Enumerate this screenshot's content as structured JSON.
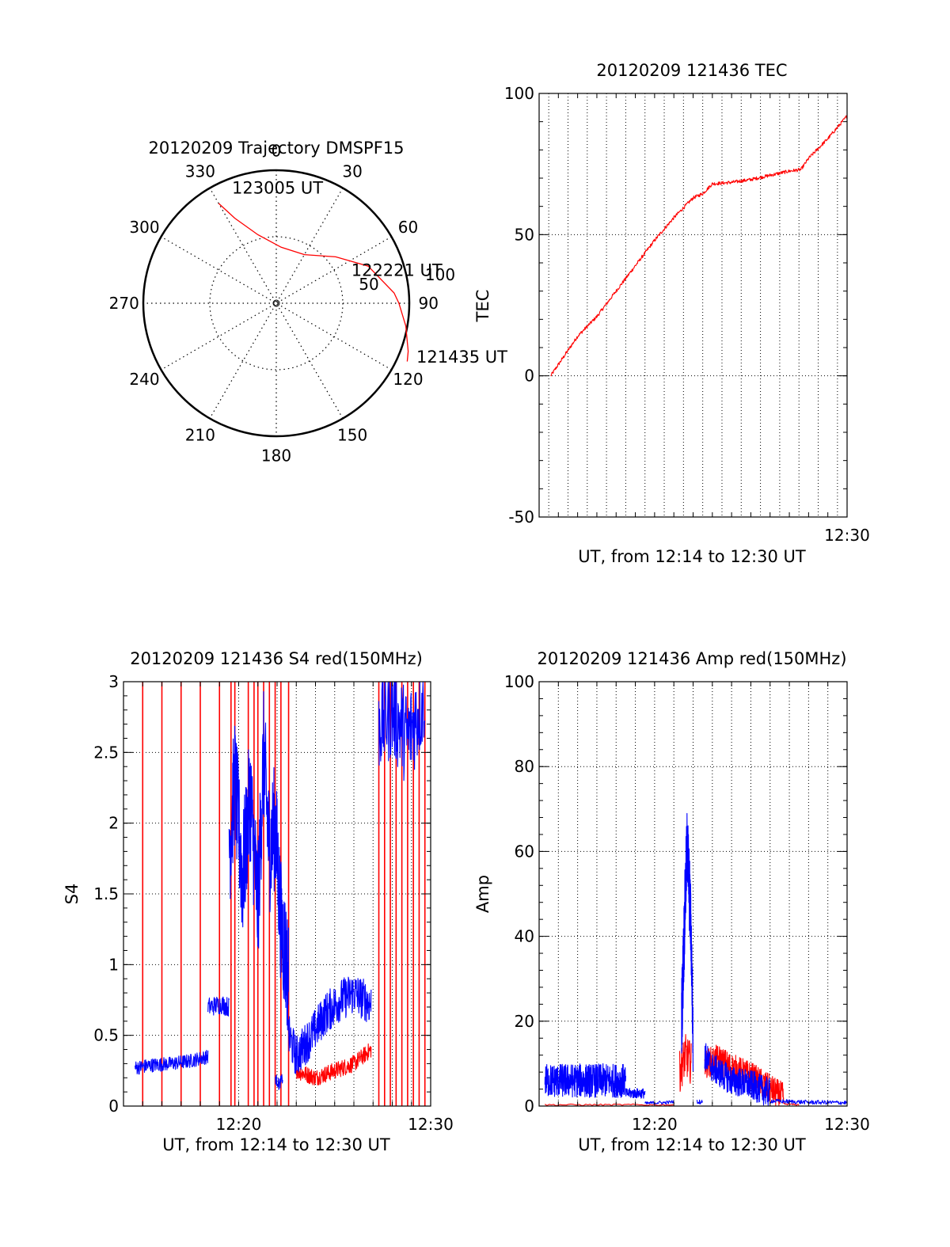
{
  "colors": {
    "red": "#ff0000",
    "blue": "#0000ff",
    "axis": "#000000",
    "grid": "#000000"
  },
  "chart_data": [
    {
      "id": "trajectory",
      "type": "polar",
      "title": "20120209 Trajectory DMSPF15",
      "angle_labels": [
        "0",
        "30",
        "60",
        "90",
        "120",
        "150",
        "180",
        "210",
        "240",
        "270",
        "300",
        "330"
      ],
      "angle_values": [
        0,
        30,
        60,
        90,
        120,
        150,
        180,
        210,
        240,
        270,
        300,
        330
      ],
      "radial_labels": [
        "50",
        "100"
      ],
      "radial_values": [
        50,
        100
      ],
      "grid": true,
      "series": [
        {
          "color": "red",
          "points": [
            [
              330,
              78
            ],
            [
              334,
              64
            ],
            [
              345,
              48
            ],
            [
              5,
              38
            ],
            [
              30,
              38
            ],
            [
              52,
              51
            ],
            [
              68,
              67
            ],
            [
              85,
              80
            ],
            [
              90,
              83
            ],
            [
              100,
              89
            ],
            [
              110,
              95
            ],
            [
              114,
              97
            ]
          ]
        }
      ],
      "annotations": [
        {
          "text": "123005 UT",
          "az": 338,
          "r": 80
        },
        {
          "text": "122221 UT",
          "az": 70,
          "r": 54
        },
        {
          "text": "121435 UT",
          "az": 113,
          "r": 103
        }
      ]
    },
    {
      "id": "tec",
      "type": "line",
      "title": "20120209 121436 TEC",
      "ylabel": "TEC",
      "xlabel": "UT, from 12:14 to 12:30 UT",
      "xlim": [
        0,
        16
      ],
      "ylim": [
        -50,
        100
      ],
      "yticks": [
        -50,
        0,
        50,
        100
      ],
      "ytick_labels": [
        "-50",
        "0",
        "50",
        "100"
      ],
      "xticks": [
        16
      ],
      "xtick_labels": [
        "12:30"
      ],
      "x_gridlines": [
        0.5,
        1.5,
        2.5,
        3.5,
        4.5,
        5.5,
        6.5,
        7.5,
        8.5,
        9.5,
        10.5,
        11.5,
        12.5,
        13.5,
        14.5,
        15.5
      ],
      "y_gridlines": [
        0,
        50
      ],
      "grid": true,
      "series": [
        {
          "color": "red",
          "x": [
            0.6,
            1,
            2,
            3,
            4,
            5,
            6,
            7,
            8,
            8.5,
            9,
            10,
            11,
            12,
            13,
            13.6,
            14,
            15,
            16
          ],
          "y": [
            0,
            4,
            14,
            21,
            30,
            39,
            48,
            56,
            63,
            64.5,
            68,
            68.5,
            69.5,
            71,
            72.5,
            73,
            77,
            84,
            92
          ],
          "noise": 0.6,
          "pts": 700
        }
      ]
    },
    {
      "id": "s4",
      "type": "line",
      "title": "20120209 121436 S4 red(150MHz)",
      "ylabel": "S4",
      "xlabel": "UT, from 12:14 to 12:30 UT",
      "xlim": [
        0,
        16
      ],
      "ylim": [
        0,
        3
      ],
      "yticks": [
        0,
        0.5,
        1,
        1.5,
        2,
        2.5,
        3
      ],
      "ytick_labels": [
        "0",
        "0.5",
        "1",
        "1.5",
        "2",
        "2.5",
        "3"
      ],
      "xticks": [
        6,
        16
      ],
      "xtick_labels": [
        "12:20",
        "12:30"
      ],
      "x_gridlines": [
        1,
        2,
        3,
        4,
        5,
        6,
        7,
        8,
        9,
        10,
        11,
        12,
        13,
        14,
        15
      ],
      "y_gridlines": [
        0.5,
        1,
        1.5,
        2,
        2.5
      ],
      "grid": true,
      "red_spikes": [
        1.0,
        2.0,
        3.0,
        4.0,
        5.0,
        5.6,
        5.8,
        6.5,
        6.8,
        7.0,
        7.3,
        7.6,
        7.9,
        8.2,
        8.6,
        13.3,
        13.6,
        13.9,
        14.2,
        14.5,
        14.8,
        15.1,
        15.4,
        15.7
      ],
      "series": [
        {
          "color": "red",
          "segments": [
            {
              "x": [
                9.0,
                10.0,
                11.0,
                12.0,
                12.9
              ],
              "y": [
                0.25,
                0.2,
                0.25,
                0.3,
                0.4
              ],
              "noise": 0.06,
              "pts": 260
            }
          ]
        },
        {
          "color": "blue",
          "segments": [
            {
              "x": [
                0.6,
                1.5,
                2.5,
                3.5,
                4.4
              ],
              "y": [
                0.27,
                0.29,
                0.3,
                0.32,
                0.35
              ],
              "noise": 0.05,
              "pts": 240
            },
            {
              "x": [
                4.4,
                5.1,
                5.5
              ],
              "y": [
                0.7,
                0.72,
                0.7
              ],
              "noise": 0.07,
              "pts": 60
            },
            {
              "x": [
                5.5,
                5.8,
                6.2,
                6.6,
                7.0,
                7.3,
                7.6,
                7.9,
                8.2,
                8.6
              ],
              "y": [
                1.8,
                2.3,
                1.6,
                2.2,
                1.4,
                2.5,
                1.8,
                2.0,
                1.3,
                0.9
              ],
              "noise": 0.45,
              "pts": 300
            },
            {
              "x": [
                7.9,
                8.1,
                8.3
              ],
              "y": [
                0.2,
                0.15,
                0.2
              ],
              "noise": 0.04,
              "pts": 30
            },
            {
              "x": [
                8.6,
                9.0,
                9.8,
                10.5,
                11.3,
                12.0,
                12.9
              ],
              "y": [
                0.5,
                0.35,
                0.5,
                0.65,
                0.75,
                0.8,
                0.72
              ],
              "noise": 0.15,
              "pts": 300
            },
            {
              "x": [
                13.3,
                14.0,
                14.8,
                15.7
              ],
              "y": [
                2.7,
                2.8,
                2.6,
                2.9
              ],
              "noise": 0.35,
              "pts": 120
            }
          ]
        }
      ]
    },
    {
      "id": "amp",
      "type": "line",
      "title": "20120209 121436 Amp red(150MHz)",
      "ylabel": "Amp",
      "xlabel": "UT, from 12:14 to 12:30 UT",
      "xlim": [
        0,
        16
      ],
      "ylim": [
        0,
        100
      ],
      "yticks": [
        0,
        20,
        40,
        60,
        80,
        100
      ],
      "ytick_labels": [
        "0",
        "20",
        "40",
        "60",
        "80",
        "100"
      ],
      "xticks": [
        6,
        16
      ],
      "xtick_labels": [
        "12:20",
        "12:30"
      ],
      "x_gridlines": [
        1,
        2,
        3,
        4,
        5,
        6,
        7,
        8,
        9,
        10,
        11,
        12,
        13,
        14,
        15
      ],
      "y_gridlines": [
        20,
        40,
        60,
        80
      ],
      "grid": true,
      "series": [
        {
          "color": "red",
          "segments": [
            {
              "x": [
                0.3,
                4.0,
                7.0
              ],
              "y": [
                0.3,
                0.3,
                0.3
              ],
              "noise": 0.2,
              "pts": 60
            },
            {
              "x": [
                7.3,
                7.6,
                7.9
              ],
              "y": [
                8,
                12,
                10
              ],
              "noise": 5,
              "pts": 50
            },
            {
              "x": [
                8.6,
                9.3,
                10.0,
                11.0,
                12.0,
                12.7
              ],
              "y": [
                10,
                11,
                9,
                7,
                4,
                2
              ],
              "noise": 3.5,
              "pts": 320
            },
            {
              "x": [
                12.7,
                13.5
              ],
              "y": [
                0.5,
                0.3
              ],
              "noise": 0.2,
              "pts": 20
            }
          ]
        },
        {
          "color": "blue",
          "segments": [
            {
              "x": [
                0.3,
                2.0,
                4.5
              ],
              "y": [
                6,
                6,
                6
              ],
              "noise": 4.0,
              "pts": 420
            },
            {
              "x": [
                4.5,
                5.0,
                5.5
              ],
              "y": [
                3,
                3,
                3
              ],
              "noise": 1.2,
              "pts": 80
            },
            {
              "x": [
                5.5,
                6.0,
                6.5,
                7.0
              ],
              "y": [
                0.6,
                0.8,
                0.8,
                1.0
              ],
              "noise": 0.4,
              "pts": 60
            },
            {
              "x": [
                7.4,
                7.6,
                7.7,
                7.9,
                8.0
              ],
              "y": [
                20,
                50,
                62,
                40,
                15
              ],
              "noise": 10,
              "pts": 140
            },
            {
              "x": [
                8.2,
                8.5
              ],
              "y": [
                1,
                1
              ],
              "noise": 0.5,
              "pts": 20
            },
            {
              "x": [
                8.6,
                9.0,
                10.0,
                11.0,
                12.0
              ],
              "y": [
                12,
                9,
                6,
                5,
                3
              ],
              "noise": 3.5,
              "pts": 300
            },
            {
              "x": [
                12.0,
                14.0,
                16.0
              ],
              "y": [
                1.2,
                0.9,
                0.8
              ],
              "noise": 0.5,
              "pts": 150
            }
          ]
        }
      ]
    }
  ]
}
